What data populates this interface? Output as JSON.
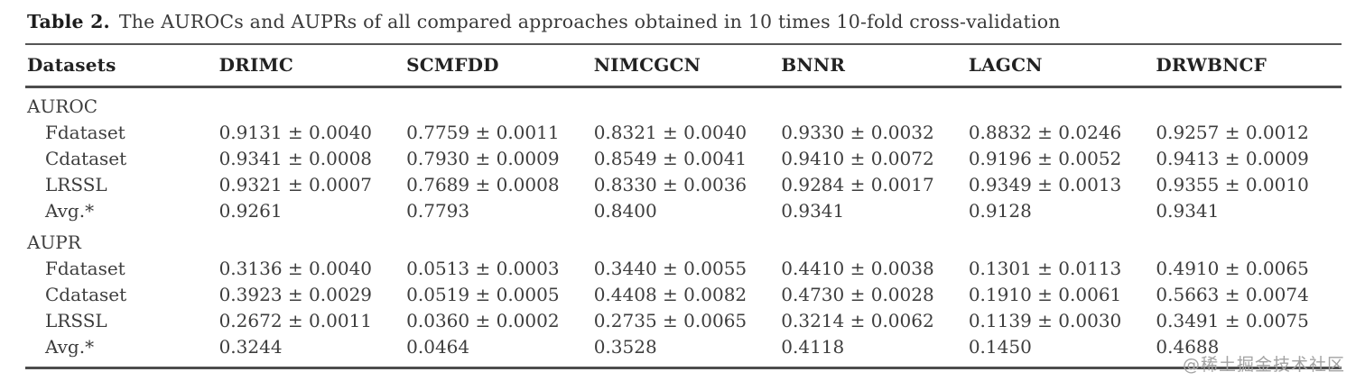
{
  "caption": {
    "label": "Table 2.",
    "text": "The AUROCs and AUPRs of all compared approaches obtained in 10 times 10-fold cross-validation"
  },
  "table": {
    "columns": [
      "Datasets",
      "DRIMC",
      "SCMFDD",
      "NIMCGCN",
      "BNNR",
      "LAGCN",
      "DRWBNCF"
    ],
    "sections": [
      {
        "name": "AUROC",
        "rows": [
          {
            "label": "Fdataset",
            "values": [
              "0.9131 ± 0.0040",
              "0.7759 ± 0.0011",
              "0.8321 ± 0.0040",
              "0.9330 ± 0.0032",
              "0.8832 ± 0.0246",
              "0.9257 ± 0.0012"
            ]
          },
          {
            "label": "Cdataset",
            "values": [
              "0.9341 ± 0.0008",
              "0.7930 ± 0.0009",
              "0.8549 ± 0.0041",
              "0.9410 ± 0.0072",
              "0.9196 ± 0.0052",
              "0.9413 ± 0.0009"
            ]
          },
          {
            "label": "LRSSL",
            "values": [
              "0.9321 ± 0.0007",
              "0.7689 ± 0.0008",
              "0.8330 ± 0.0036",
              "0.9284 ± 0.0017",
              "0.9349 ± 0.0013",
              "0.9355 ± 0.0010"
            ]
          },
          {
            "label": "Avg.*",
            "values": [
              "0.9261",
              "0.7793",
              "0.8400",
              "0.9341",
              "0.9128",
              "0.9341"
            ]
          }
        ]
      },
      {
        "name": "AUPR",
        "rows": [
          {
            "label": "Fdataset",
            "values": [
              "0.3136 ± 0.0040",
              "0.0513 ± 0.0003",
              "0.3440 ± 0.0055",
              "0.4410 ± 0.0038",
              "0.1301 ± 0.0113",
              "0.4910 ± 0.0065"
            ]
          },
          {
            "label": "Cdataset",
            "values": [
              "0.3923 ± 0.0029",
              "0.0519 ± 0.0005",
              "0.4408 ± 0.0082",
              "0.4730 ± 0.0028",
              "0.1910 ± 0.0061",
              "0.5663 ± 0.0074"
            ]
          },
          {
            "label": "LRSSL",
            "values": [
              "0.2672 ± 0.0011",
              "0.0360 ± 0.0002",
              "0.2735 ± 0.0065",
              "0.3214 ± 0.0062",
              "0.1139 ± 0.0030",
              "0.3491 ± 0.0075"
            ]
          },
          {
            "label": "Avg.*",
            "values": [
              "0.3244",
              "0.0464",
              "0.3528",
              "0.4118",
              "0.1450",
              "0.4688"
            ]
          }
        ]
      }
    ]
  },
  "watermark": "@稀土掘金技术社区",
  "colors": {
    "rule": "#4d4d4d",
    "body_text": "#3d3d3d",
    "header_text": "#222222",
    "watermark_text": "#a3a3a3",
    "background": "#ffffff"
  }
}
